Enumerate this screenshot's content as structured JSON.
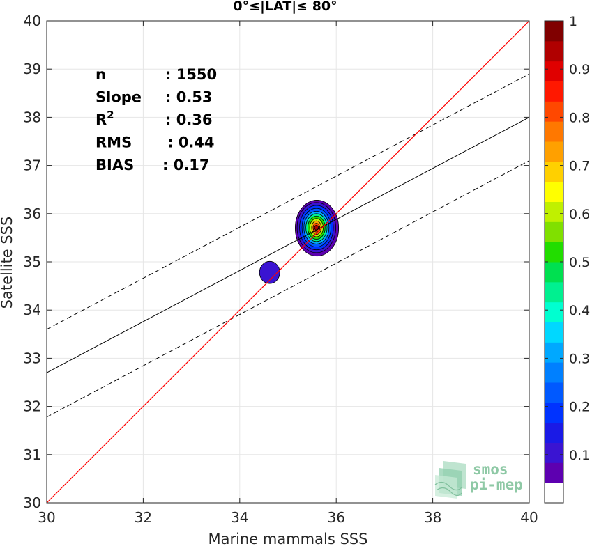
{
  "chart_data": {
    "type": "scatter",
    "title": "0°≤|LAT|≤ 80°",
    "xlabel": "Marine mammals SSS",
    "ylabel": "Satellite SSS",
    "xlim": [
      30,
      40
    ],
    "ylim": [
      30,
      40
    ],
    "xticks": [
      30,
      32,
      34,
      36,
      38,
      40
    ],
    "yticks": [
      30,
      31,
      32,
      33,
      34,
      35,
      36,
      37,
      38,
      39,
      40
    ],
    "grid": true,
    "stats": [
      {
        "label": "n",
        "value": ": 1550"
      },
      {
        "label": "Slope",
        "value": ": 0.53"
      },
      {
        "label": "R",
        "sup": "2",
        "value": ": 0.36"
      },
      {
        "label": "RMS",
        "value": ": 0.44"
      },
      {
        "label": "BIAS",
        "value": ": 0.17"
      }
    ],
    "one_to_one_line": {
      "slope": 1,
      "intercept": 0,
      "color": "#ff0000"
    },
    "fit_line": {
      "x": [
        30,
        40
      ],
      "y": [
        32.7,
        38.0
      ],
      "color": "#000000"
    },
    "confidence_lines": [
      {
        "x": [
          30,
          40
        ],
        "y": [
          33.6,
          38.9
        ],
        "style": "dashed"
      },
      {
        "x": [
          30,
          40
        ],
        "y": [
          31.78,
          37.1
        ],
        "style": "dashed"
      }
    ],
    "density_contours": [
      {
        "cx": 35.6,
        "cy": 35.7,
        "rx": 0.45,
        "ry": 0.58,
        "level": 0.05
      },
      {
        "cx": 35.59,
        "cy": 35.71,
        "rx": 0.4,
        "ry": 0.52,
        "level": 0.1
      },
      {
        "cx": 35.59,
        "cy": 35.71,
        "rx": 0.35,
        "ry": 0.46,
        "level": 0.15
      },
      {
        "cx": 35.59,
        "cy": 35.71,
        "rx": 0.3,
        "ry": 0.4,
        "level": 0.2
      },
      {
        "cx": 35.59,
        "cy": 35.71,
        "rx": 0.26,
        "ry": 0.34,
        "level": 0.3
      },
      {
        "cx": 35.59,
        "cy": 35.71,
        "rx": 0.22,
        "ry": 0.29,
        "level": 0.4
      },
      {
        "cx": 35.59,
        "cy": 35.71,
        "rx": 0.18,
        "ry": 0.24,
        "level": 0.5
      },
      {
        "cx": 35.59,
        "cy": 35.71,
        "rx": 0.14,
        "ry": 0.19,
        "level": 0.6
      },
      {
        "cx": 35.59,
        "cy": 35.71,
        "rx": 0.1,
        "ry": 0.14,
        "level": 0.7
      },
      {
        "cx": 35.59,
        "cy": 35.71,
        "rx": 0.07,
        "ry": 0.09,
        "level": 0.8
      },
      {
        "cx": 35.59,
        "cy": 35.71,
        "rx": 0.04,
        "ry": 0.05,
        "level": 0.9
      },
      {
        "cx": 34.62,
        "cy": 34.78,
        "rx": 0.21,
        "ry": 0.23,
        "level": 0.1
      }
    ],
    "colorbar": {
      "range": [
        0,
        1
      ],
      "ticks": [
        0.1,
        0.2,
        0.3,
        0.4,
        0.5,
        0.6,
        0.7,
        0.8,
        0.9,
        1
      ],
      "tick_labels": [
        "0.1",
        "0.2",
        "0.3",
        "0.4",
        "0.5",
        "0.6",
        "0.7",
        "0.8",
        "0.9",
        "1"
      ],
      "colors": [
        "#ffffff",
        "#5d00b0",
        "#3a14d2",
        "#1a1ae6",
        "#0033ff",
        "#0059ff",
        "#0080ff",
        "#00a8ff",
        "#00d8ff",
        "#00ffd0",
        "#00f090",
        "#00e050",
        "#22dd00",
        "#80e000",
        "#c0f000",
        "#ffff00",
        "#ffd000",
        "#ffa000",
        "#ff7800",
        "#ff4800",
        "#ff1800",
        "#e00000",
        "#b00000",
        "#800000"
      ]
    }
  },
  "logo": {
    "line1": "smos",
    "line2": "pi-mep"
  }
}
